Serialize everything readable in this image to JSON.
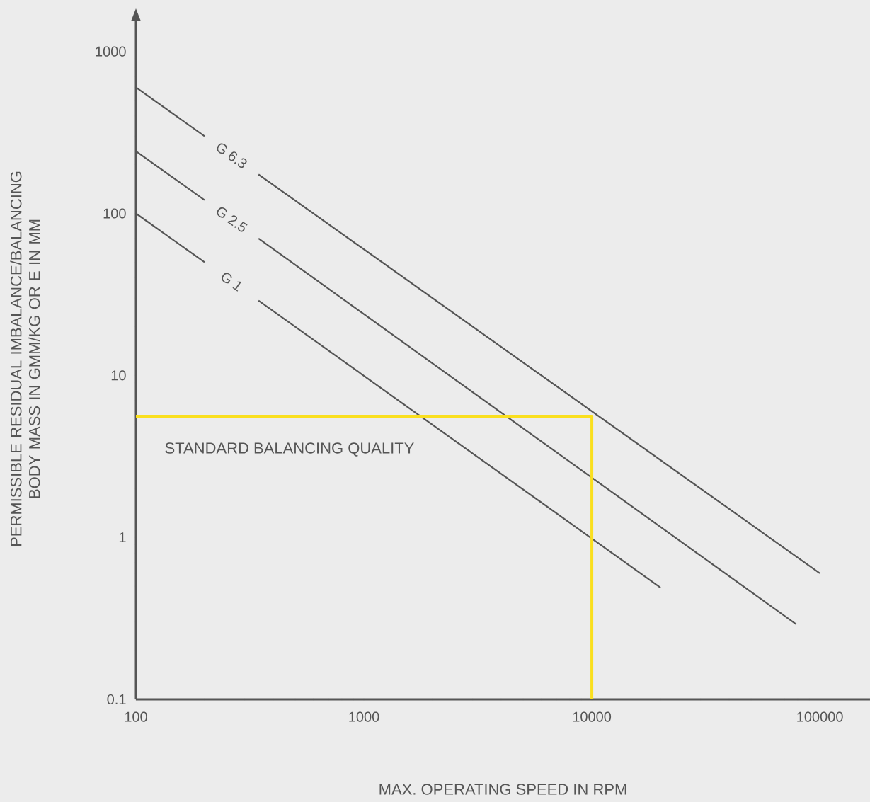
{
  "chart_data": {
    "type": "line",
    "xlabel": "MAX. OPERATING SPEED IN RPM",
    "ylabel": "PERMISSIBLE RESIDUAL IMBALANCE/BALANCING BODY MASS IN GMM/KG OR E IN MM",
    "log": "xy",
    "xlim": [
      100,
      166000
    ],
    "ylim": [
      0.1,
      1600
    ],
    "xticks": [
      100,
      1000,
      10000,
      100000
    ],
    "yticks": [
      0.1,
      1,
      10,
      100,
      1000
    ],
    "grid": false,
    "series": [
      {
        "name": "G 6.3",
        "color": "#555555",
        "x": [
          100,
          200,
          262,
          345,
          100000
        ],
        "values": [
          600,
          300,
          null,
          174,
          0.6
        ]
      },
      {
        "name": "G 2.5",
        "color": "#555555",
        "x": [
          100,
          200,
          262,
          345,
          79000
        ],
        "values": [
          242,
          121,
          null,
          70,
          0.29
        ]
      },
      {
        "name": "G 1",
        "color": "#555555",
        "x": [
          100,
          200,
          262,
          345,
          20000
        ],
        "values": [
          100,
          50,
          null,
          29,
          0.49
        ]
      },
      {
        "name": "STANDARD BALANCING QUALITY",
        "color": "#fadf1e",
        "x": [
          100,
          10000,
          10000
        ],
        "values": [
          5.6,
          5.6,
          0.1
        ]
      }
    ]
  }
}
